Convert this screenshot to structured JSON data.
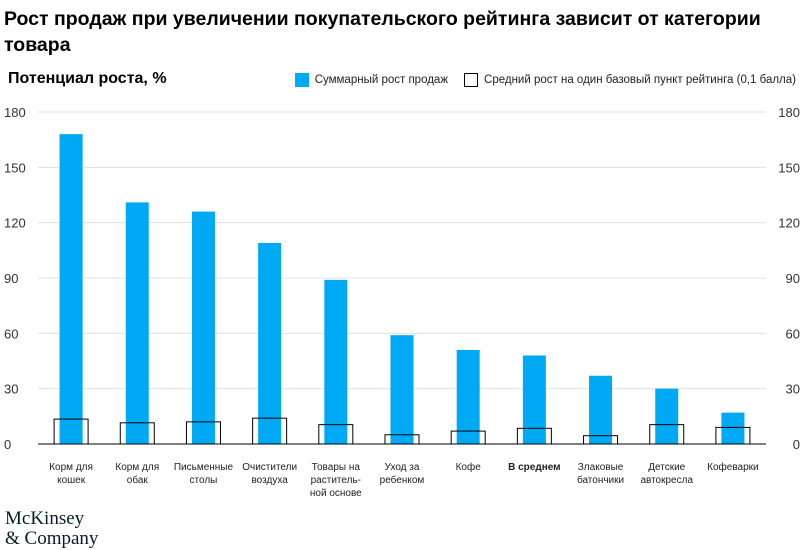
{
  "header": {
    "title": "Рост продаж при увеличении покупательского рейтинга зависит от категории товара"
  },
  "logo": {
    "line1": "McKinsey",
    "line2": "& Company"
  },
  "colors": {
    "bar": "#00a9f4",
    "outline": "#000000",
    "grid": "#e0e0e0"
  },
  "chart_data": {
    "type": "bar",
    "ylabel": "Потенциал роста, %",
    "ylim": [
      0,
      180
    ],
    "yticks": [
      0,
      30,
      60,
      90,
      120,
      150,
      180
    ],
    "legend_position": "top-right",
    "grid": true,
    "categories": [
      [
        "Корм для",
        "кошек"
      ],
      [
        "Корм для",
        "обак"
      ],
      [
        "Письменные",
        "столы"
      ],
      [
        "Очистители",
        "воздуха"
      ],
      [
        "Товары на",
        "раститель-",
        "ной основе"
      ],
      [
        "Уход за",
        "ребенком"
      ],
      [
        "Кофе"
      ],
      [
        "В среднем"
      ],
      [
        "Злаковые",
        "батончики"
      ],
      [
        "Детские",
        "автокресла"
      ],
      [
        "Кофеварки"
      ]
    ],
    "highlight_category_index": 7,
    "series": [
      {
        "name": "Суммарный рост продаж",
        "values": [
          168,
          131,
          126,
          109,
          89,
          59,
          51,
          48,
          37,
          30,
          17
        ]
      },
      {
        "name": "Средний рост на один базовый пункт рейтинга (0,1 балла)",
        "values": [
          13.5,
          11.5,
          12,
          14,
          10.5,
          5,
          7,
          8.5,
          4.5,
          10.5,
          9
        ]
      }
    ]
  }
}
